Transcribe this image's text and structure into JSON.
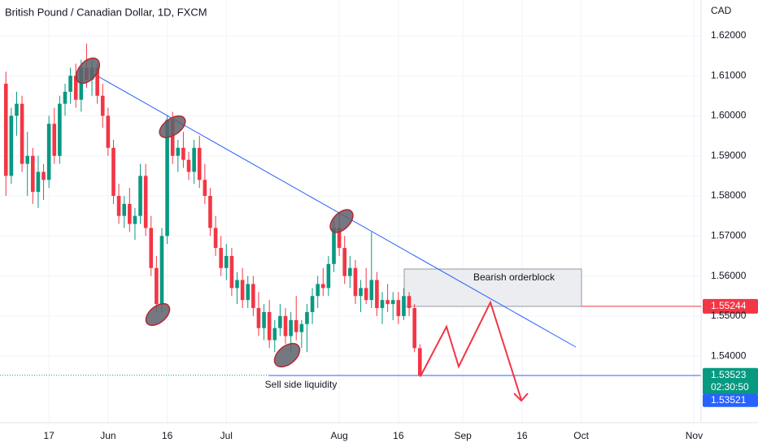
{
  "chart_data": {
    "type": "candlestick",
    "title": "British Pound / Canadian Dollar, 1D, FXCM",
    "currency": "CAD",
    "up_color": "#089981",
    "down_color": "#f23645",
    "grid": true,
    "xlim": [
      -1.1,
      129.3
    ],
    "xticks": [
      {
        "value": 8,
        "label": "17"
      },
      {
        "value": 19,
        "label": "Jun"
      },
      {
        "value": 30,
        "label": "16"
      },
      {
        "value": 41,
        "label": "Jul"
      },
      {
        "value": 62,
        "label": "Aug"
      },
      {
        "value": 73,
        "label": "16"
      },
      {
        "value": 85,
        "label": "Sep"
      },
      {
        "value": 96,
        "label": "16"
      },
      {
        "value": 107,
        "label": "Oct"
      },
      {
        "value": 128,
        "label": "Nov"
      }
    ],
    "ylim": [
      1.5234,
      1.6289
    ],
    "yticks": [
      {
        "value": 1.54,
        "label": "1.54000"
      },
      {
        "value": 1.55,
        "label": "1.55000"
      },
      {
        "value": 1.56,
        "label": "1.56000"
      },
      {
        "value": 1.57,
        "label": "1.57000"
      },
      {
        "value": 1.58,
        "label": "1.58000"
      },
      {
        "value": 1.59,
        "label": "1.59000"
      },
      {
        "value": 1.6,
        "label": "1.60000"
      },
      {
        "value": 1.61,
        "label": "1.61000"
      },
      {
        "value": 1.62,
        "label": "1.62000"
      }
    ],
    "open": [
      1.608,
      1.585,
      1.6,
      1.603,
      1.588,
      1.59,
      1.581,
      1.586,
      1.584,
      1.598,
      1.59,
      1.603,
      1.606,
      1.61,
      1.604,
      1.612,
      1.609,
      1.612,
      1.605,
      1.6,
      1.592,
      1.58,
      1.575,
      1.578,
      1.573,
      1.575,
      1.585,
      1.572,
      1.562,
      1.553,
      1.57,
      1.599,
      1.59,
      1.592,
      1.589,
      1.586,
      1.592,
      1.584,
      1.58,
      1.572,
      1.567,
      1.562,
      1.565,
      1.557,
      1.559,
      1.554,
      1.558,
      1.552,
      1.547,
      1.551,
      1.544,
      1.547,
      1.55,
      1.545,
      1.549,
      1.546,
      1.548,
      1.551,
      1.555,
      1.558,
      1.557,
      1.563,
      1.572,
      1.567,
      1.56,
      1.562,
      1.555,
      1.557,
      1.554,
      1.559,
      1.552,
      1.554,
      1.553,
      1.554,
      1.55,
      1.555,
      1.552,
      1.542
    ],
    "high": [
      1.611,
      1.602,
      1.606,
      1.605,
      1.596,
      1.592,
      1.59,
      1.588,
      1.6,
      1.602,
      1.605,
      1.608,
      1.612,
      1.613,
      1.614,
      1.618,
      1.614,
      1.613,
      1.608,
      1.602,
      1.594,
      1.583,
      1.58,
      1.582,
      1.577,
      1.588,
      1.588,
      1.575,
      1.565,
      1.572,
      1.6,
      1.601,
      1.594,
      1.596,
      1.591,
      1.594,
      1.595,
      1.588,
      1.582,
      1.575,
      1.57,
      1.568,
      1.567,
      1.561,
      1.562,
      1.56,
      1.56,
      1.556,
      1.553,
      1.554,
      1.549,
      1.553,
      1.552,
      1.551,
      1.555,
      1.549,
      1.553,
      1.557,
      1.56,
      1.562,
      1.565,
      1.574,
      1.576,
      1.57,
      1.565,
      1.564,
      1.559,
      1.562,
      1.571,
      1.561,
      1.556,
      1.558,
      1.556,
      1.556,
      1.557,
      1.556,
      1.553,
      1.543
    ],
    "low": [
      1.58,
      1.583,
      1.595,
      1.586,
      1.58,
      1.578,
      1.577,
      1.579,
      1.582,
      1.588,
      1.588,
      1.6,
      1.603,
      1.602,
      1.601,
      1.607,
      1.605,
      1.603,
      1.597,
      1.59,
      1.578,
      1.573,
      1.572,
      1.571,
      1.569,
      1.573,
      1.57,
      1.56,
      1.551,
      1.551,
      1.568,
      1.588,
      1.586,
      1.587,
      1.584,
      1.583,
      1.582,
      1.578,
      1.57,
      1.565,
      1.56,
      1.559,
      1.555,
      1.553,
      1.552,
      1.552,
      1.55,
      1.545,
      1.544,
      1.542,
      1.541,
      1.545,
      1.543,
      1.541,
      1.544,
      1.542,
      1.541,
      1.548,
      1.552,
      1.555,
      1.555,
      1.561,
      1.565,
      1.558,
      1.557,
      1.553,
      1.551,
      1.553,
      1.552,
      1.55,
      1.548,
      1.551,
      1.549,
      1.548,
      1.549,
      1.55,
      1.541,
      1.5348
    ],
    "close": [
      1.585,
      1.6,
      1.603,
      1.588,
      1.59,
      1.581,
      1.586,
      1.584,
      1.598,
      1.59,
      1.603,
      1.606,
      1.61,
      1.604,
      1.612,
      1.609,
      1.612,
      1.605,
      1.6,
      1.592,
      1.58,
      1.575,
      1.578,
      1.573,
      1.575,
      1.585,
      1.572,
      1.562,
      1.553,
      1.57,
      1.599,
      1.59,
      1.592,
      1.589,
      1.586,
      1.592,
      1.584,
      1.58,
      1.572,
      1.567,
      1.562,
      1.565,
      1.557,
      1.559,
      1.554,
      1.558,
      1.552,
      1.547,
      1.551,
      1.544,
      1.547,
      1.55,
      1.545,
      1.549,
      1.546,
      1.548,
      1.551,
      1.555,
      1.558,
      1.557,
      1.563,
      1.572,
      1.567,
      1.56,
      1.562,
      1.555,
      1.557,
      1.554,
      1.559,
      1.552,
      1.554,
      1.553,
      1.554,
      1.55,
      1.555,
      1.552,
      1.542,
      1.5352
    ],
    "orderblock_label": "Bearish orderblock",
    "liquidity_label": "Sell side liquidity",
    "orderblock_price": 1.55244,
    "last_price": 1.53523,
    "countdown": "02:30:50",
    "bid_price": 1.53521
  }
}
